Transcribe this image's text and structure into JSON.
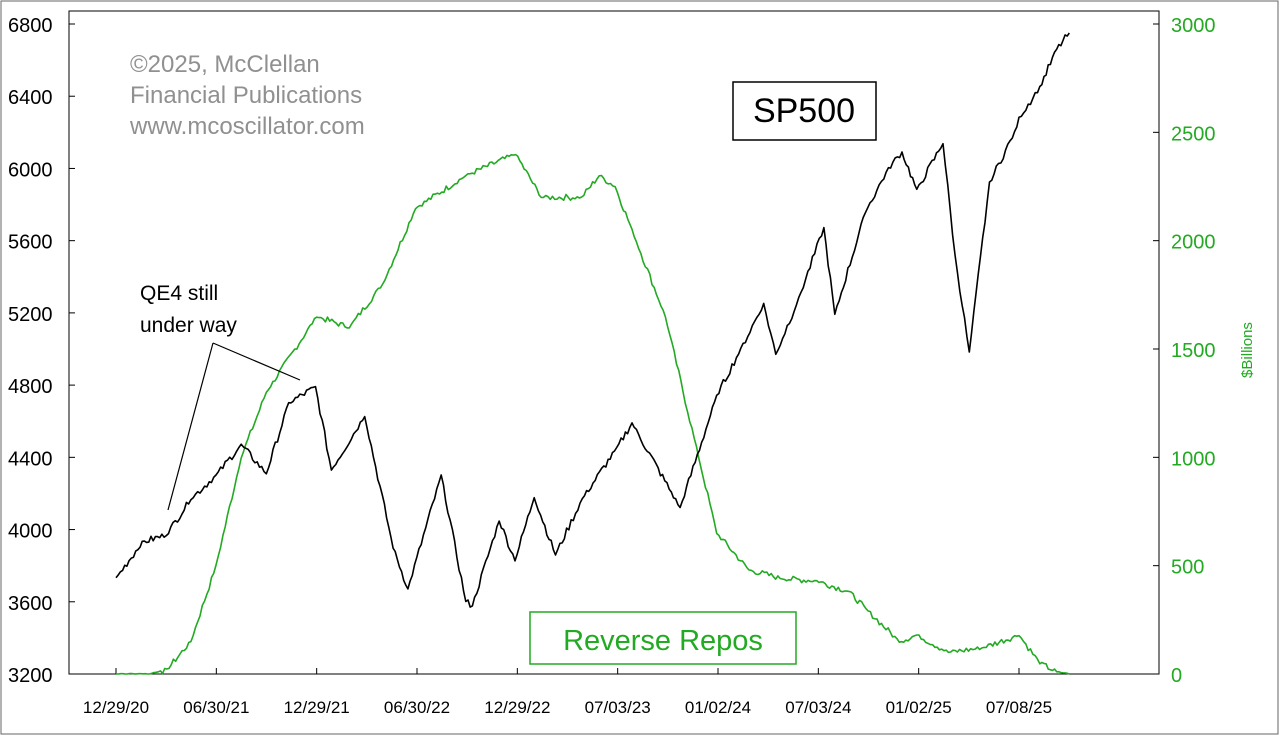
{
  "chart_data": {
    "type": "line",
    "copyright_lines": [
      "©2025, McClellan",
      "Financial Publications",
      "www.mcoscillator.com"
    ],
    "ylabel_right": "$Billions",
    "y_left_ticks": [
      "6800",
      "6400",
      "6000",
      "5600",
      "5200",
      "4800",
      "4400",
      "4000",
      "3600",
      "3200"
    ],
    "y_right_ticks": [
      "3000",
      "2500",
      "2000",
      "1500",
      "1000",
      "500",
      "0"
    ],
    "x_ticks": [
      "12/29/20",
      "06/30/21",
      "12/29/21",
      "06/30/22",
      "12/29/22",
      "07/03/23",
      "01/02/24",
      "07/03/24",
      "01/02/25",
      "07/08/25"
    ],
    "ylim_left": [
      3200,
      6800
    ],
    "ylim_right": [
      0,
      3000
    ],
    "grid": false,
    "annotations": {
      "sp500_box": "SP500",
      "reverse_repos_box": "Reverse Repos",
      "qe4_line1": "QE4 still",
      "qe4_line2": "under way"
    },
    "series": [
      {
        "name": "SP500",
        "axis": "left",
        "color": "#000000",
        "dates": [
          "2020-12-29",
          "2021-02-15",
          "2021-03-31",
          "2021-05-15",
          "2021-06-30",
          "2021-08-15",
          "2021-09-30",
          "2021-11-10",
          "2021-12-29",
          "2022-01-27",
          "2022-03-29",
          "2022-05-20",
          "2022-06-16",
          "2022-08-16",
          "2022-09-30",
          "2022-10-12",
          "2022-11-30",
          "2022-12-29",
          "2023-02-02",
          "2023-03-13",
          "2023-05-01",
          "2023-07-03",
          "2023-07-31",
          "2023-10-27",
          "2024-01-02",
          "2024-02-15",
          "2024-03-28",
          "2024-04-19",
          "2024-05-31",
          "2024-07-16",
          "2024-08-05",
          "2024-09-30",
          "2024-11-11",
          "2024-12-06",
          "2025-01-02",
          "2025-02-19",
          "2025-03-13",
          "2025-04-08",
          "2025-05-15",
          "2025-06-30",
          "2025-07-08",
          "2025-08-15",
          "2025-09-15",
          "2025-10-08"
        ],
        "values": [
          3730,
          3930,
          3970,
          4170,
          4300,
          4470,
          4310,
          4700,
          4790,
          4330,
          4630,
          3900,
          3670,
          4300,
          3600,
          3580,
          4050,
          3830,
          4180,
          3860,
          4170,
          4450,
          4590,
          4120,
          4740,
          5000,
          5250,
          4970,
          5280,
          5670,
          5190,
          5760,
          6000,
          6090,
          5880,
          6140,
          5520,
          4980,
          5920,
          6200,
          6280,
          6450,
          6660,
          6750
        ]
      },
      {
        "name": "Reverse Repos",
        "axis": "right",
        "color": "#22aa22",
        "dates": [
          "2020-12-29",
          "2021-03-01",
          "2021-04-01",
          "2021-05-15",
          "2021-06-30",
          "2021-08-15",
          "2021-09-30",
          "2021-12-31",
          "2022-03-01",
          "2022-05-01",
          "2022-06-30",
          "2022-09-30",
          "2022-12-30",
          "2023-02-15",
          "2023-04-30",
          "2023-06-01",
          "2023-06-30",
          "2023-07-31",
          "2023-09-30",
          "2023-11-30",
          "2024-01-02",
          "2024-03-01",
          "2024-05-01",
          "2024-07-03",
          "2024-08-31",
          "2024-10-01",
          "2024-12-01",
          "2025-01-02",
          "2025-03-01",
          "2025-05-01",
          "2025-07-08",
          "2025-08-15",
          "2025-09-15",
          "2025-10-08"
        ],
        "values": [
          0,
          0,
          20,
          150,
          500,
          1000,
          1300,
          1650,
          1600,
          1800,
          2150,
          2300,
          2400,
          2200,
          2200,
          2300,
          2250,
          2050,
          1650,
          1000,
          650,
          480,
          440,
          430,
          380,
          300,
          150,
          180,
          100,
          120,
          180,
          50,
          10,
          0
        ]
      }
    ]
  }
}
